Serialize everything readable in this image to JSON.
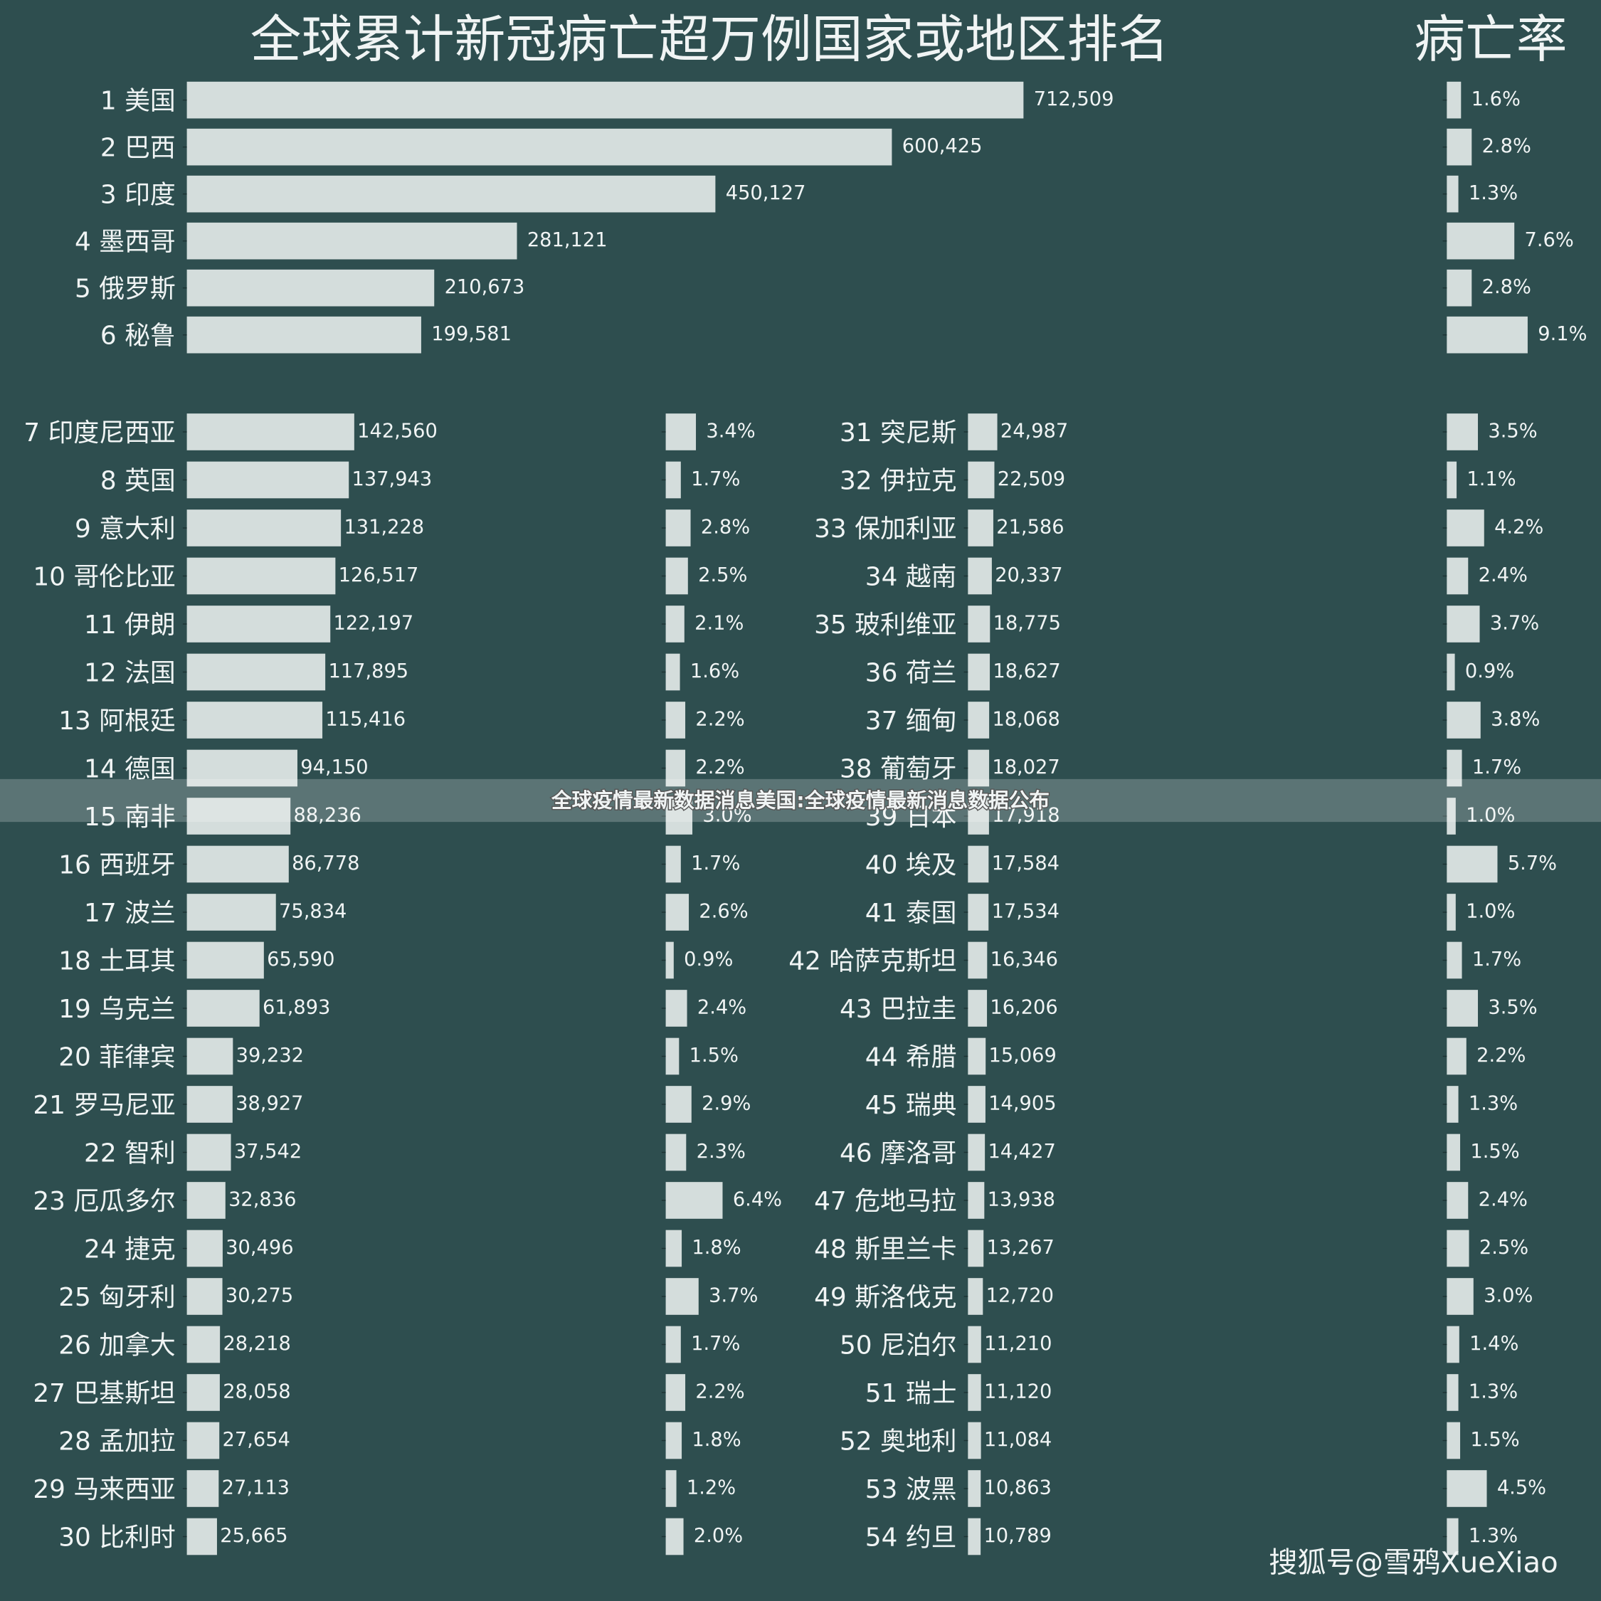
{
  "chart_data": [
    {
      "type": "barh",
      "title": "全球累计新冠病亡超万例国家或地区排名",
      "color": "#d4dddc",
      "xlim": [
        0,
        800000
      ],
      "categories": [
        "1 美国",
        "2 巴西",
        "3 印度",
        "4 墨西哥",
        "5 俄罗斯",
        "6 秘鲁"
      ],
      "values": [
        712509,
        600425,
        450127,
        281121,
        210673,
        199581
      ],
      "value_labels": [
        "712,509",
        "600,425",
        "450,127",
        "281,121",
        "210,673",
        "199,581"
      ]
    },
    {
      "type": "barh",
      "title": "病亡率",
      "color": "#d4dddc",
      "xlim": [
        0,
        10
      ],
      "values": [
        1.6,
        2.8,
        1.3,
        7.6,
        2.8,
        9.1
      ],
      "value_labels": [
        "1.6%",
        "2.8%",
        "1.3%",
        "7.6%",
        "2.8%",
        "9.1%"
      ]
    },
    {
      "type": "barh",
      "color": "#d4dddc",
      "xlim": [
        0,
        800000
      ],
      "categories": [
        "7 印度尼西亚",
        "8 英国",
        "9 意大利",
        "10 哥伦比亚",
        "11 伊朗",
        "12 法国",
        "13 阿根廷",
        "14 德国",
        "15 南非",
        "16 西班牙",
        "17 波兰",
        "18 土耳其",
        "19 乌克兰",
        "20 菲律宾",
        "21 罗马尼亚",
        "22 智利",
        "23 厄瓜多尔",
        "24 捷克",
        "25 匈牙利",
        "26 加拿大",
        "27 巴基斯坦",
        "28 孟加拉",
        "29 马来西亚",
        "30 比利时"
      ],
      "values": [
        142560,
        137943,
        131228,
        126517,
        122197,
        117895,
        115416,
        94150,
        88236,
        86778,
        75834,
        65590,
        61893,
        39232,
        38927,
        37542,
        32836,
        30496,
        30275,
        28218,
        28058,
        27654,
        27113,
        25665
      ],
      "value_labels": [
        "142,560",
        "137,943",
        "131,228",
        "126,517",
        "122,197",
        "117,895",
        "115,416",
        "94,150",
        "88,236",
        "86,778",
        "75,834",
        "65,590",
        "61,893",
        "39,232",
        "38,927",
        "37,542",
        "32,836",
        "30,496",
        "30,275",
        "28,218",
        "28,058",
        "27,654",
        "27,113",
        "25,665"
      ]
    },
    {
      "type": "barh",
      "color": "#d4dddc",
      "xlim": [
        0,
        10
      ],
      "values": [
        3.4,
        1.7,
        2.8,
        2.5,
        2.1,
        1.6,
        2.2,
        2.2,
        3.0,
        1.7,
        2.6,
        0.9,
        2.4,
        1.5,
        2.9,
        2.3,
        6.4,
        1.8,
        3.7,
        1.7,
        2.2,
        1.8,
        1.2,
        2.0
      ],
      "value_labels": [
        "3.4%",
        "1.7%",
        "2.8%",
        "2.5%",
        "2.1%",
        "1.6%",
        "2.2%",
        "2.2%",
        "3.0%",
        "1.7%",
        "2.6%",
        "0.9%",
        "2.4%",
        "1.5%",
        "2.9%",
        "2.3%",
        "6.4%",
        "1.8%",
        "3.7%",
        "1.7%",
        "2.2%",
        "1.8%",
        "1.2%",
        "2.0%"
      ]
    },
    {
      "type": "barh",
      "color": "#d4dddc",
      "xlim": [
        0,
        800000
      ],
      "categories": [
        "31 突尼斯",
        "32 伊拉克",
        "33 保加利亚",
        "34 越南",
        "35 玻利维亚",
        "36 荷兰",
        "37 缅甸",
        "38 葡萄牙",
        "39 日本",
        "40 埃及",
        "41 泰国",
        "42 哈萨克斯坦",
        "43 巴拉圭",
        "44 希腊",
        "45 瑞典",
        "46 摩洛哥",
        "47 危地马拉",
        "48 斯里兰卡",
        "49 斯洛伐克",
        "50 尼泊尔",
        "51 瑞士",
        "52 奥地利",
        "53 波黑",
        "54 约旦"
      ],
      "values": [
        24987,
        22509,
        21586,
        20337,
        18775,
        18627,
        18068,
        18027,
        17918,
        17584,
        17534,
        16346,
        16206,
        15069,
        14905,
        14427,
        13938,
        13267,
        12720,
        11210,
        11120,
        11084,
        10863,
        10789
      ],
      "value_labels": [
        "24,987",
        "22,509",
        "21,586",
        "20,337",
        "18,775",
        "18,627",
        "18,068",
        "18,027",
        "17,918",
        "17,584",
        "17,534",
        "16,346",
        "16,206",
        "15,069",
        "14,905",
        "14,427",
        "13,938",
        "13,267",
        "12,720",
        "11,210",
        "11,120",
        "11,084",
        "10,863",
        "10,789"
      ]
    },
    {
      "type": "barh",
      "color": "#d4dddc",
      "xlim": [
        0,
        10
      ],
      "values": [
        3.5,
        1.1,
        4.2,
        2.4,
        3.7,
        0.9,
        3.8,
        1.7,
        1.0,
        5.7,
        1.0,
        1.7,
        3.5,
        2.2,
        1.3,
        1.5,
        2.4,
        2.5,
        3.0,
        1.4,
        1.3,
        1.5,
        4.5,
        1.3
      ],
      "value_labels": [
        "3.5%",
        "1.1%",
        "4.2%",
        "2.4%",
        "3.7%",
        "0.9%",
        "3.8%",
        "1.7%",
        "1.0%",
        "5.7%",
        "1.0%",
        "1.7%",
        "3.5%",
        "2.2%",
        "1.3%",
        "1.5%",
        "2.4%",
        "2.5%",
        "3.0%",
        "1.4%",
        "1.3%",
        "1.5%",
        "4.5%",
        "1.3%"
      ]
    }
  ],
  "banner": "全球疫情最新数据消息美国:全球疫情最新消息数据公布",
  "watermark": "搜狐号@雪鸦XueXiao"
}
